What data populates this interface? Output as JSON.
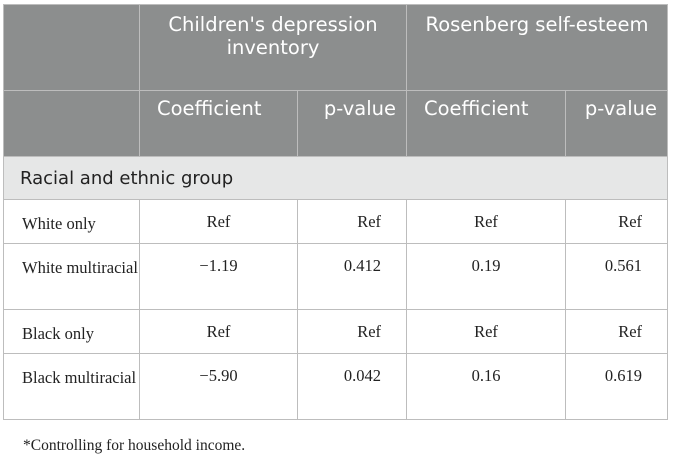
{
  "header": {
    "cdi": "Children's depression inventory",
    "rse": "Rosenberg self-esteem",
    "coefficient": "Coefficient",
    "pvalue": "p-value"
  },
  "group_label": "Racial and ethnic group",
  "rows": [
    {
      "label": "White only",
      "cdi_coef": "Ref",
      "cdi_p": "Ref",
      "rse_coef": "Ref",
      "rse_p": "Ref"
    },
    {
      "label": "White multiracial",
      "cdi_coef": "−1.19",
      "cdi_p": "0.412",
      "rse_coef": "0.19",
      "rse_p": "0.561"
    },
    {
      "label": "Black only",
      "cdi_coef": "Ref",
      "cdi_p": "Ref",
      "rse_coef": "Ref",
      "rse_p": "Ref"
    },
    {
      "label": "Black multiracial",
      "cdi_coef": "−5.90",
      "cdi_p": "0.042",
      "rse_coef": "0.16",
      "rse_p": "0.619"
    }
  ],
  "footnote": "*Controlling for household income."
}
